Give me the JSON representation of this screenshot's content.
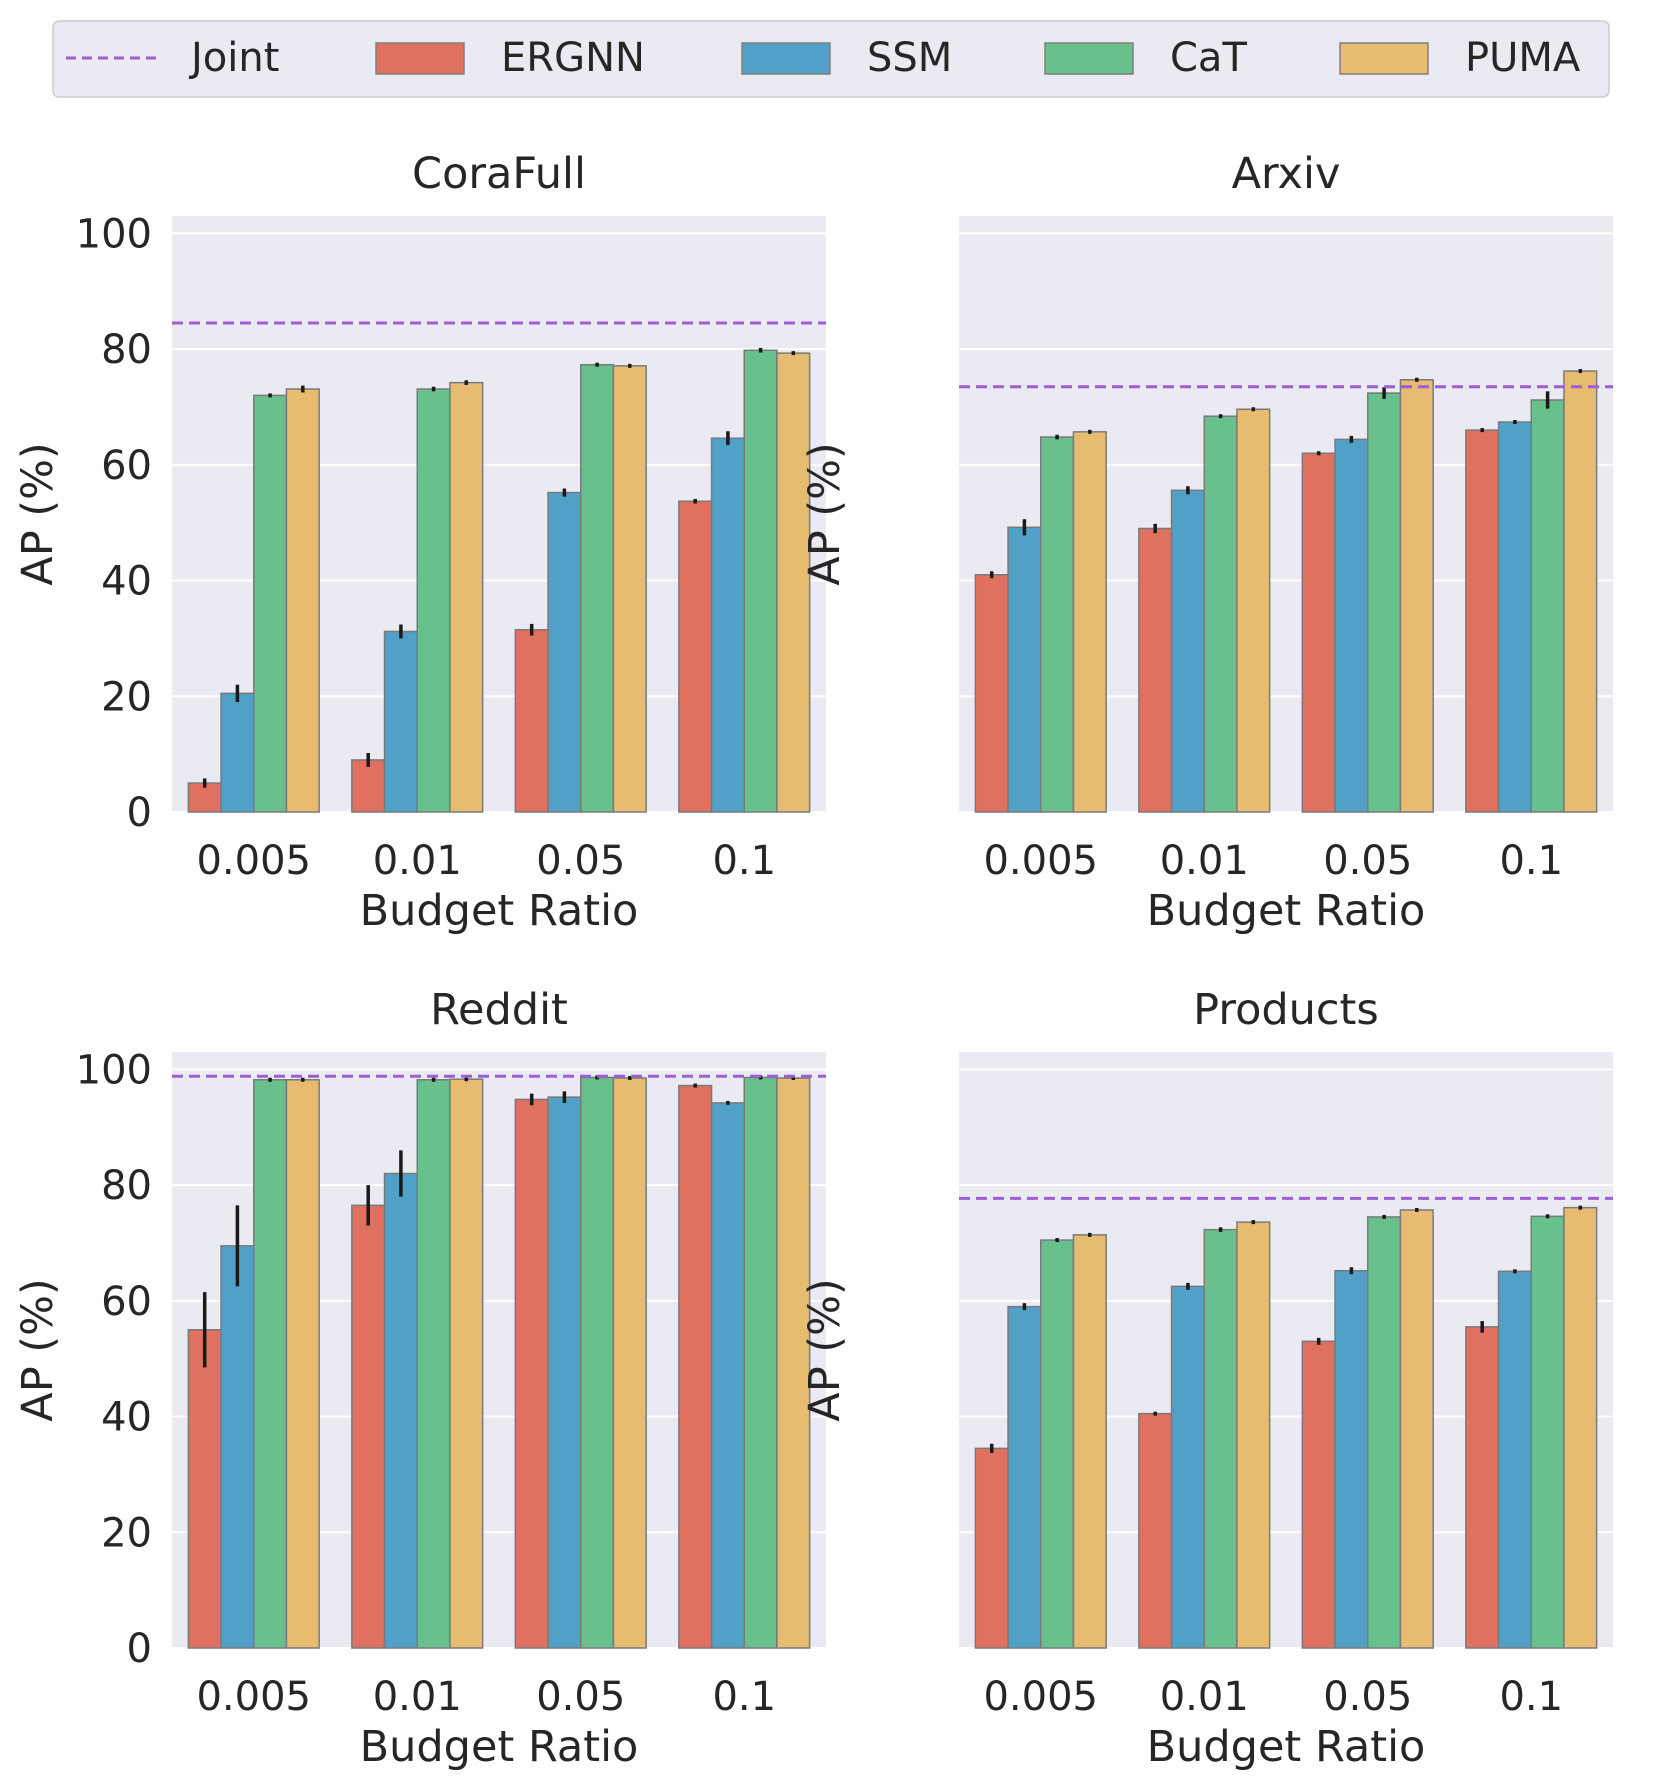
{
  "legend": [
    {
      "name": "Joint",
      "type": "line",
      "color": "#9a5fd0"
    },
    {
      "name": "ERGNN",
      "type": "bar",
      "color": "#e07060"
    },
    {
      "name": "SSM",
      "type": "bar",
      "color": "#50a0c8"
    },
    {
      "name": "CaT",
      "type": "bar",
      "color": "#68c08d"
    },
    {
      "name": "PUMA",
      "type": "bar",
      "color": "#e8bc70"
    }
  ],
  "chart_data": [
    {
      "type": "bar",
      "title": "CoraFull",
      "xlabel": "Budget Ratio",
      "ylabel": "AP (%)",
      "ylim": [
        0,
        103
      ],
      "yticks": [
        0,
        20,
        40,
        60,
        80,
        100
      ],
      "show_ytick_labels": true,
      "categories": [
        "0.005",
        "0.01",
        "0.05",
        "0.1"
      ],
      "joint": 84.5,
      "series": [
        {
          "name": "ERGNN",
          "values": [
            5.0,
            9.0,
            31.5,
            53.7
          ],
          "errors": [
            0.8,
            1.2,
            1.0,
            0.4
          ]
        },
        {
          "name": "SSM",
          "values": [
            20.5,
            31.2,
            55.2,
            64.6
          ],
          "errors": [
            1.5,
            1.2,
            0.7,
            1.2
          ]
        },
        {
          "name": "CaT",
          "values": [
            72.0,
            73.1,
            77.3,
            79.8
          ],
          "errors": [
            0.3,
            0.4,
            0.1,
            0.4
          ]
        },
        {
          "name": "PUMA",
          "values": [
            73.1,
            74.2,
            77.1,
            79.3
          ],
          "errors": [
            0.6,
            0.4,
            0.1,
            0.2
          ]
        }
      ]
    },
    {
      "type": "bar",
      "title": "Arxiv",
      "xlabel": "Budget Ratio",
      "ylabel": "AP (%)",
      "ylim": [
        0,
        103
      ],
      "yticks": [
        0,
        20,
        40,
        60,
        80,
        100
      ],
      "show_ytick_labels": false,
      "categories": [
        "0.005",
        "0.01",
        "0.05",
        "0.1"
      ],
      "joint": 73.5,
      "series": [
        {
          "name": "ERGNN",
          "values": [
            41.0,
            49.0,
            62.0,
            66.0
          ],
          "errors": [
            0.6,
            0.8,
            0.2,
            0.3
          ]
        },
        {
          "name": "SSM",
          "values": [
            49.2,
            55.6,
            64.4,
            67.4
          ],
          "errors": [
            1.4,
            0.7,
            0.6,
            0.3
          ]
        },
        {
          "name": "CaT",
          "values": [
            64.8,
            68.4,
            72.4,
            71.2
          ],
          "errors": [
            0.4,
            0.2,
            1.0,
            1.5
          ]
        },
        {
          "name": "PUMA",
          "values": [
            65.7,
            69.6,
            74.7,
            76.2
          ],
          "errors": [
            0.3,
            0.2,
            0.2,
            0.1
          ]
        }
      ]
    },
    {
      "type": "bar",
      "title": "Reddit",
      "xlabel": "Budget Ratio",
      "ylabel": "AP (%)",
      "ylim": [
        0,
        103
      ],
      "yticks": [
        0,
        20,
        40,
        60,
        80,
        100
      ],
      "show_ytick_labels": true,
      "categories": [
        "0.005",
        "0.01",
        "0.05",
        "0.1"
      ],
      "joint": 98.8,
      "series": [
        {
          "name": "ERGNN",
          "values": [
            55.0,
            76.5,
            94.8,
            97.2
          ],
          "errors": [
            6.5,
            3.5,
            1.0,
            0.2
          ]
        },
        {
          "name": "SSM",
          "values": [
            69.5,
            82.0,
            95.2,
            94.2
          ],
          "errors": [
            7.0,
            4.0,
            1.0,
            0.2
          ]
        },
        {
          "name": "CaT",
          "values": [
            98.2,
            98.2,
            98.6,
            98.6
          ],
          "errors": [
            0.1,
            0.1,
            0.1,
            0.1
          ]
        },
        {
          "name": "PUMA",
          "values": [
            98.2,
            98.3,
            98.5,
            98.5
          ],
          "errors": [
            0.1,
            0.1,
            0.1,
            0.1
          ]
        }
      ]
    },
    {
      "type": "bar",
      "title": "Products",
      "xlabel": "Budget Ratio",
      "ylabel": "AP (%)",
      "ylim": [
        0,
        103
      ],
      "yticks": [
        0,
        20,
        40,
        60,
        80,
        100
      ],
      "show_ytick_labels": false,
      "categories": [
        "0.005",
        "0.01",
        "0.05",
        "0.1"
      ],
      "joint": 77.7,
      "series": [
        {
          "name": "ERGNN",
          "values": [
            34.5,
            40.5,
            53.0,
            55.5
          ],
          "errors": [
            0.8,
            0.3,
            0.6,
            1.0
          ]
        },
        {
          "name": "SSM",
          "values": [
            59.0,
            62.5,
            65.2,
            65.1
          ],
          "errors": [
            0.6,
            0.6,
            0.6,
            0.2
          ]
        },
        {
          "name": "CaT",
          "values": [
            70.5,
            72.3,
            74.5,
            74.6
          ],
          "errors": [
            0.2,
            0.4,
            0.2,
            0.2
          ]
        },
        {
          "name": "PUMA",
          "values": [
            71.4,
            73.6,
            75.7,
            76.1
          ],
          "errors": [
            0.3,
            0.1,
            0.1,
            0.1
          ]
        }
      ]
    }
  ]
}
